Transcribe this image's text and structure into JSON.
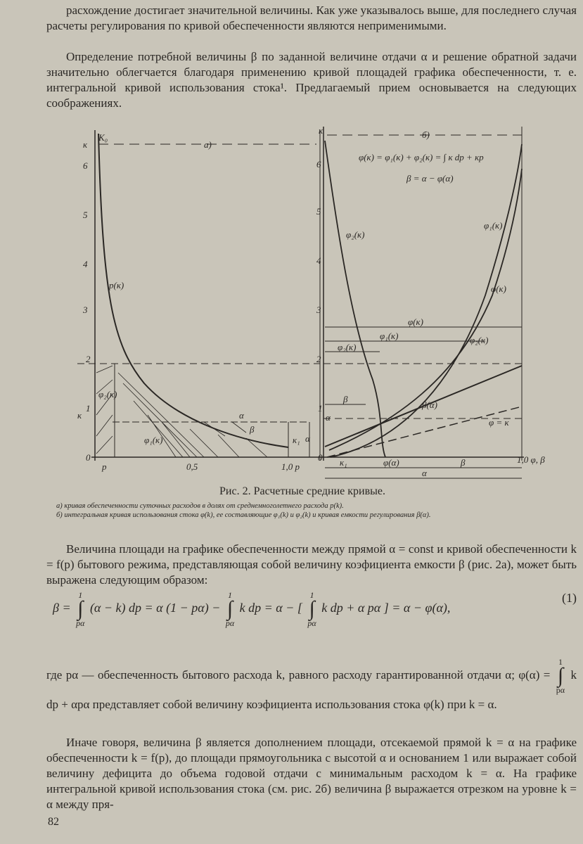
{
  "paragraphs": [
    "расхождение достигает значительной величины. Как уже указывалось выше, для последнего случая расчеты регулирования по кривой обеспеченности являются неприменимыми.",
    "Определение потребной величины β по заданной величине отдачи α и решение обратной задачи значительно облегчается благодаря применению кривой площадей графика обеспеченности, т. е. интегральной кривой использования стока¹. Предлагаемый прием основывается на следующих соображениях.",
    "Величина площади на графике обеспеченности между прямой α = const и кривой обеспеченности k = f(p) бытового режима, представляющая собой величину коэфициента емкости β (рис. 2а), может быть выражена следующим образом:"
  ],
  "figure": {
    "caption": "Рис. 2. Расчетные средние кривые.",
    "notes": [
      "а) кривая обеспеченности суточных расходов в долях от среднемноголетнего расхода p(k).",
      "б) интегральная кривая использования стока φ(k), ее составляющие φ₁(k) и φ₂(k) и кривая емкости регулирования β(α)."
    ],
    "left": {
      "axis_top": "к",
      "k0": "К₀",
      "panel": "а)",
      "yticks": [
        "6",
        "5",
        "4",
        "3",
        "2",
        "1",
        "0"
      ],
      "y_label": "к",
      "x_p": "p",
      "x_mid": "0,5",
      "x_end": "1,0 p",
      "curve": "p(к)",
      "phi2": "φ₂(к)",
      "phi1": "φ₁(к)",
      "alpha": "α",
      "beta": "β",
      "k1": "к₁",
      "alpha_side": "α"
    },
    "right": {
      "axis_top": "к",
      "panel": "б)",
      "formula1": "φ(к) = φ₁(к) + φ₂(к) = ∫ к dp + кp",
      "formula2": "β = α − φ(α)",
      "yticks": [
        "6",
        "5",
        "4",
        "3",
        "2",
        "1",
        "0"
      ],
      "phi2_curve": "φ₂(к)",
      "phi1_curve": "φ₁(к)",
      "phi_curve": "φ(к)",
      "phi_dim": "φ(к)",
      "phi1_dim": "φ₁(к)",
      "phi2_dim": "φ₂(к)",
      "phi2_dim_b": "φ₂(к)",
      "beta_dim": "β",
      "alpha_mark": "α",
      "beta_curve": "β(α)",
      "diag": "φ = к",
      "k1": "к₁",
      "phi_alpha": "φ(α)",
      "beta_bottom": "β",
      "alpha_bottom": "α",
      "x_end": "1,0 φ, β"
    }
  },
  "equation": {
    "parts": [
      "β = ",
      "(α − k) dp = α (1 − pα) − ",
      "k dp = α − [ ",
      "k dp + α pα ] = α − φ(α),"
    ],
    "upper": "1",
    "lower": "pα",
    "number": "(1)"
  },
  "paragraph4": [
    "где pα — обеспеченность бытового расхода k, равного расходу гарантированной отдачи α;  φ(α) = ",
    "k dp + αpα представляет собой величину коэфициента использования стока  φ(k)  при  k = α."
  ],
  "paragraph5": "Иначе говоря, величина β является дополнением площади, отсекаемой прямой k = α на графике обеспеченности k = f(p), до площади прямоугольника с высотой α и основанием 1 или выражает собой величину дефицита до объема годовой отдачи с минимальным расходом k = α. На графике интегральной кривой использования стока (см. рис. 2б) величина β выражается отрезком на уровне k = α между пря-",
  "page_number": "82"
}
